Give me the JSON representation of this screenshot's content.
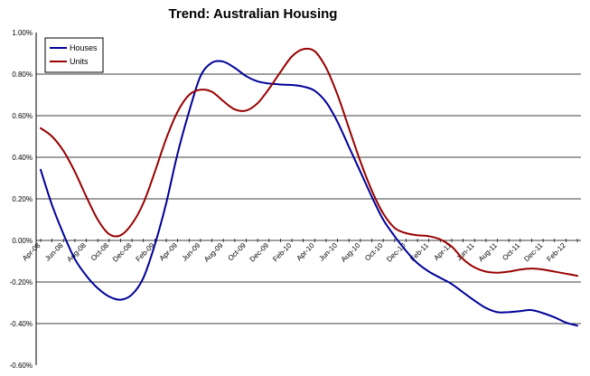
{
  "chart_data": {
    "type": "line",
    "title": "Trend: Australian Housing",
    "xlabel": "",
    "ylabel": "",
    "ylim": [
      -0.6,
      1.0
    ],
    "y_ticks": [
      -0.6,
      -0.4,
      -0.2,
      0.0,
      0.2,
      0.4,
      0.6,
      0.8,
      1.0
    ],
    "y_tick_labels": [
      "-0.60%",
      "-0.40%",
      "-0.20%",
      "0.00%",
      "0.20%",
      "0.40%",
      "0.60%",
      "0.80%",
      "1.00%"
    ],
    "x_tick_labels": [
      "Apr-08",
      "Jun-08",
      "Aug-08",
      "Oct-08",
      "Dec-08",
      "Feb-09",
      "Apr-09",
      "Jun-09",
      "Aug-09",
      "Oct-09",
      "Dec-09",
      "Feb-10",
      "Apr-10",
      "Jun-10",
      "Aug-10",
      "Oct-10",
      "Dec-10",
      "Feb-11",
      "Apr-11",
      "Jun-11",
      "Aug-11",
      "Oct-11",
      "Dec-11",
      "Feb-12"
    ],
    "x": [
      "Apr-08",
      "May-08",
      "Jun-08",
      "Jul-08",
      "Aug-08",
      "Sep-08",
      "Oct-08",
      "Nov-08",
      "Dec-08",
      "Jan-09",
      "Feb-09",
      "Mar-09",
      "Apr-09",
      "May-09",
      "Jun-09",
      "Jul-09",
      "Aug-09",
      "Sep-09",
      "Oct-09",
      "Nov-09",
      "Dec-09",
      "Jan-10",
      "Feb-10",
      "Mar-10",
      "Apr-10",
      "May-10",
      "Jun-10",
      "Jul-10",
      "Aug-10",
      "Sep-10",
      "Oct-10",
      "Nov-10",
      "Dec-10",
      "Jan-11",
      "Feb-11",
      "Mar-11",
      "Apr-11",
      "May-11",
      "Jun-11",
      "Jul-11",
      "Aug-11",
      "Sep-11",
      "Oct-11",
      "Nov-11",
      "Dec-11",
      "Jan-12",
      "Feb-12",
      "Mar-12"
    ],
    "grid": "horizontal",
    "legend_position": "top-left",
    "series": [
      {
        "name": "Houses",
        "color": "#000099",
        "values": [
          0.34,
          0.17,
          0.03,
          -0.09,
          -0.17,
          -0.23,
          -0.27,
          -0.285,
          -0.26,
          -0.18,
          -0.02,
          0.18,
          0.42,
          0.62,
          0.79,
          0.855,
          0.86,
          0.83,
          0.79,
          0.765,
          0.755,
          0.75,
          0.748,
          0.74,
          0.72,
          0.665,
          0.57,
          0.45,
          0.33,
          0.21,
          0.1,
          0.02,
          -0.05,
          -0.11,
          -0.15,
          -0.18,
          -0.21,
          -0.25,
          -0.29,
          -0.325,
          -0.345,
          -0.345,
          -0.34,
          -0.335,
          -0.35,
          -0.37,
          -0.395,
          -0.41
        ]
      },
      {
        "name": "Units",
        "color": "#990000",
        "values": [
          0.54,
          0.5,
          0.43,
          0.33,
          0.21,
          0.1,
          0.03,
          0.025,
          0.08,
          0.18,
          0.33,
          0.49,
          0.62,
          0.7,
          0.725,
          0.715,
          0.67,
          0.63,
          0.625,
          0.66,
          0.73,
          0.81,
          0.885,
          0.92,
          0.91,
          0.83,
          0.7,
          0.54,
          0.38,
          0.24,
          0.13,
          0.06,
          0.035,
          0.025,
          0.02,
          0.005,
          -0.03,
          -0.09,
          -0.13,
          -0.15,
          -0.155,
          -0.15,
          -0.14,
          -0.135,
          -0.14,
          -0.15,
          -0.16,
          -0.17
        ]
      }
    ]
  }
}
